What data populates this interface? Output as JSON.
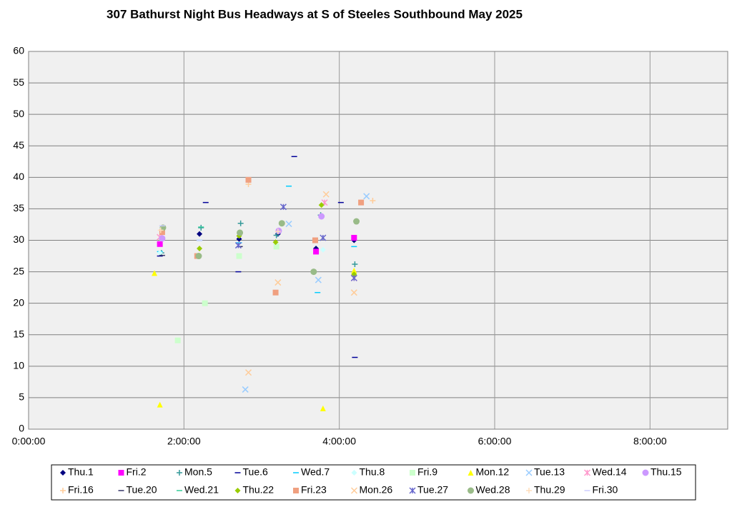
{
  "chart_data": {
    "type": "scatter",
    "title": "307 Bathurst Night Bus Headways at S of Steeles Southbound May 2025",
    "xlim": [
      0,
      9
    ],
    "ylim": [
      0,
      60
    ],
    "xticks": [
      {
        "value": 0,
        "label": "0:00:00"
      },
      {
        "value": 2,
        "label": "2:00:00"
      },
      {
        "value": 4,
        "label": "4:00:00"
      },
      {
        "value": 6,
        "label": "6:00:00"
      },
      {
        "value": 8,
        "label": "8:00:00"
      }
    ],
    "yticks": [
      0,
      5,
      10,
      15,
      20,
      25,
      30,
      35,
      40,
      45,
      50,
      55,
      60
    ],
    "grid": true,
    "series": [
      {
        "name": "Thu.1",
        "color": "#000080",
        "marker": "diamond",
        "x": [
          2.2,
          2.71,
          3.21,
          3.7,
          4.19
        ],
        "values": [
          31,
          30.2,
          31,
          28.7,
          30
        ]
      },
      {
        "name": "Fri.2",
        "color": "#ff00ff",
        "marker": "square",
        "x": [
          1.69,
          3.7,
          4.19
        ],
        "values": [
          29.4,
          28.2,
          30.4
        ]
      },
      {
        "name": "Mon.5",
        "color": "#339999",
        "marker": "plus",
        "x": [
          1.71,
          2.22,
          2.73,
          3.19,
          3.76,
          4.2
        ],
        "values": [
          28,
          32,
          32.7,
          30.8,
          34,
          26.2
        ]
      },
      {
        "name": "Tue.6",
        "color": "#000099",
        "marker": "dash",
        "x": [
          1.69,
          2.28,
          2.7,
          3.42,
          4.02,
          4.2
        ],
        "values": [
          27.5,
          36,
          25,
          43.3,
          36,
          11.4
        ]
      },
      {
        "name": "Wed.7",
        "color": "#00ccff",
        "marker": "dash",
        "x": [
          1.69,
          2.2,
          2.71,
          3.35,
          3.72,
          4.19
        ],
        "values": [
          28.2,
          30,
          29.6,
          38.6,
          21.7,
          29
        ]
      },
      {
        "name": "Thu.8",
        "color": "#ccffff",
        "marker": "diamond",
        "x": [
          1.69,
          3.79
        ],
        "values": [
          28,
          28.5
        ]
      },
      {
        "name": "Fri.9",
        "color": "#ccffcc",
        "marker": "square",
        "x": [
          1.92,
          2.27,
          2.71,
          3.19
        ],
        "values": [
          14.1,
          20,
          27.5,
          29
        ]
      },
      {
        "name": "Mon.12",
        "color": "#ffff00",
        "marker": "triangle",
        "x": [
          1.62,
          1.69,
          3.79,
          4.19
        ],
        "values": [
          24.8,
          3.9,
          3.3,
          25.2
        ]
      },
      {
        "name": "Tue.13",
        "color": "#99ccff",
        "marker": "cross",
        "x": [
          2.79,
          3.35,
          3.73,
          4.35
        ],
        "values": [
          6.3,
          32.6,
          23.7,
          37
        ]
      },
      {
        "name": "Wed.14",
        "color": "#ff99cc",
        "marker": "star",
        "x": [
          1.69,
          3.81,
          4.19
        ],
        "values": [
          30.5,
          36,
          24
        ]
      },
      {
        "name": "Thu.15",
        "color": "#cc99ff",
        "marker": "circle",
        "x": [
          1.72,
          3.22,
          3.77
        ],
        "values": [
          30.3,
          31.5,
          33.8
        ]
      },
      {
        "name": "Fri.16",
        "color": "#ffcc99",
        "marker": "plus",
        "x": [
          2.83,
          4.43
        ],
        "values": [
          38.9,
          36.3
        ]
      },
      {
        "name": "Tue.20",
        "color": "#333366",
        "marker": "dash",
        "x": [
          1.72,
          2.72
        ],
        "values": [
          27.6,
          29
        ]
      },
      {
        "name": "Wed.21",
        "color": "#33cc99",
        "marker": "dash",
        "x": [
          2.22,
          2.72
        ],
        "values": [
          32.1,
          31.3
        ]
      },
      {
        "name": "Thu.22",
        "color": "#99cc00",
        "marker": "diamond",
        "x": [
          2.2,
          2.71,
          3.18,
          3.77,
          4.19
        ],
        "values": [
          28.7,
          30.7,
          29.7,
          35.6,
          24.6
        ]
      },
      {
        "name": "Fri.23",
        "color": "#f0a080",
        "marker": "square",
        "x": [
          1.72,
          2.17,
          2.83,
          3.18,
          3.69,
          4.28
        ],
        "values": [
          31.3,
          27.5,
          39.6,
          21.7,
          30,
          36
        ]
      },
      {
        "name": "Mon.26",
        "color": "#ffcc99",
        "marker": "cross",
        "x": [
          2.83,
          3.21,
          3.83,
          4.19
        ],
        "values": [
          9,
          23.3,
          37.3,
          21.7
        ]
      },
      {
        "name": "Tue.27",
        "color": "#6666cc",
        "marker": "star",
        "x": [
          2.7,
          3.28,
          3.79,
          4.19
        ],
        "values": [
          29.2,
          35.3,
          30.4,
          24
        ]
      },
      {
        "name": "Wed.28",
        "color": "#99bb88",
        "marker": "circle",
        "x": [
          1.73,
          2.19,
          2.72,
          3.26,
          3.67,
          4.22
        ],
        "values": [
          32,
          27.5,
          31.2,
          32.7,
          25,
          33
        ]
      },
      {
        "name": "Thu.29",
        "color": "#ffddbb",
        "marker": "plus",
        "x": [
          1.7,
          3.21
        ],
        "values": [
          31.6,
          31.4
        ]
      },
      {
        "name": "Fri.30",
        "color": "#ccccff",
        "marker": "dash",
        "x": [
          1.72,
          2.2
        ],
        "values": [
          32.3,
          30
        ]
      }
    ]
  }
}
